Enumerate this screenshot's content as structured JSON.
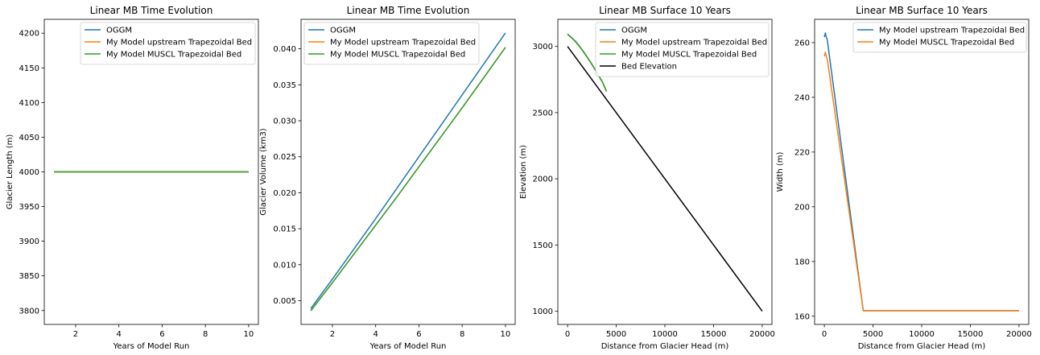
{
  "chart_data": [
    {
      "type": "line",
      "title": "Linear MB Time Evolution",
      "xlabel": "Years of Model Run",
      "ylabel": "Glacier Length (m)",
      "xlim": [
        0.55,
        10.45
      ],
      "ylim": [
        3780,
        4220
      ],
      "xticks": [
        2,
        4,
        6,
        8,
        10
      ],
      "yticks": [
        3800,
        3850,
        3900,
        3950,
        4000,
        4050,
        4100,
        4150,
        4200
      ],
      "legend": "top-right",
      "series": [
        {
          "name": "OGGM",
          "color": "#1f77b4",
          "x": [
            1,
            2,
            3,
            4,
            5,
            6,
            7,
            8,
            9,
            10
          ],
          "y": [
            4000,
            4000,
            4000,
            4000,
            4000,
            4000,
            4000,
            4000,
            4000,
            4000
          ]
        },
        {
          "name": "My Model upstream Trapezoidal Bed",
          "color": "#ff7f0e",
          "x": [
            1,
            2,
            3,
            4,
            5,
            6,
            7,
            8,
            9,
            10
          ],
          "y": [
            4000,
            4000,
            4000,
            4000,
            4000,
            4000,
            4000,
            4000,
            4000,
            4000
          ]
        },
        {
          "name": "My Model MUSCL Trapezoidal Bed",
          "color": "#2ca02c",
          "x": [
            1,
            2,
            3,
            4,
            5,
            6,
            7,
            8,
            9,
            10
          ],
          "y": [
            4000,
            4000,
            4000,
            4000,
            4000,
            4000,
            4000,
            4000,
            4000,
            4000
          ]
        }
      ]
    },
    {
      "type": "line",
      "title": "Linear MB Time Evolution",
      "xlabel": "Years of Model Run",
      "ylabel": "Glacier Volume (km3)",
      "xlim": [
        0.55,
        10.45
      ],
      "ylim": [
        0.0017,
        0.0441
      ],
      "xticks": [
        2,
        4,
        6,
        8,
        10
      ],
      "yticks": [
        0.005,
        0.01,
        0.015,
        0.02,
        0.025,
        0.03,
        0.035,
        0.04
      ],
      "ytick_labels": [
        "0.005",
        "0.010",
        "0.015",
        "0.020",
        "0.025",
        "0.030",
        "0.035",
        "0.040"
      ],
      "legend": "top-left",
      "series": [
        {
          "name": "OGGM",
          "color": "#1f77b4",
          "x": [
            1,
            2,
            3,
            4,
            5,
            6,
            7,
            8,
            9,
            10
          ],
          "y": [
            0.0039,
            0.008,
            0.0122,
            0.0164,
            0.0207,
            0.025,
            0.0293,
            0.0336,
            0.0379,
            0.0422
          ]
        },
        {
          "name": "My Model upstream Trapezoidal Bed",
          "color": "#ff7f0e",
          "x": [
            1,
            2,
            3,
            4,
            5,
            6,
            7,
            8,
            9,
            10
          ],
          "y": [
            0.0036,
            0.0075,
            0.0115,
            0.0155,
            0.0195,
            0.0236,
            0.0277,
            0.0318,
            0.036,
            0.0402
          ]
        },
        {
          "name": "My Model MUSCL Trapezoidal Bed",
          "color": "#2ca02c",
          "x": [
            1,
            2,
            3,
            4,
            5,
            6,
            7,
            8,
            9,
            10
          ],
          "y": [
            0.0036,
            0.0075,
            0.0115,
            0.0155,
            0.0195,
            0.0236,
            0.0277,
            0.0318,
            0.036,
            0.0402
          ]
        }
      ]
    },
    {
      "type": "line",
      "title": "Linear MB Surface 10 Years",
      "xlabel": "Distance from Glacier Head (m)",
      "ylabel": "Elevation (m)",
      "xlim": [
        -1000,
        21000
      ],
      "ylim": [
        900,
        3205
      ],
      "xticks": [
        0,
        5000,
        10000,
        15000,
        20000
      ],
      "yticks": [
        1000,
        1500,
        2000,
        2500,
        3000
      ],
      "legend": "top-right",
      "series": [
        {
          "name": "OGGM",
          "color": "#1f77b4",
          "x": [
            0,
            200,
            400,
            800,
            1200,
            1600,
            2000,
            2400,
            2800,
            3200,
            3600,
            4000
          ],
          "y": [
            3095,
            3080,
            3068,
            3040,
            3005,
            2965,
            2922,
            2878,
            2830,
            2780,
            2730,
            2660
          ]
        },
        {
          "name": "My Model upstream Trapezoidal Bed",
          "color": "#ff7f0e",
          "x": [
            0,
            200,
            400,
            800,
            1200,
            1600,
            2000,
            2400,
            2800,
            3200,
            3600,
            4000
          ],
          "y": [
            3093,
            3078,
            3066,
            3038,
            3003,
            2963,
            2920,
            2876,
            2828,
            2778,
            2728,
            2660
          ]
        },
        {
          "name": "My Model MUSCL Trapezoidal Bed",
          "color": "#2ca02c",
          "x": [
            0,
            200,
            400,
            800,
            1200,
            1600,
            2000,
            2400,
            2800,
            3200,
            3600,
            4000
          ],
          "y": [
            3093,
            3078,
            3066,
            3038,
            3003,
            2963,
            2920,
            2876,
            2828,
            2778,
            2728,
            2660
          ]
        },
        {
          "name": "Bed Elevation",
          "color": "#000000",
          "x": [
            0,
            20000
          ],
          "y": [
            3000,
            1000
          ]
        }
      ]
    },
    {
      "type": "line",
      "title": "Linear MB Surface 10 Years",
      "xlabel": "Distance from Glacier Head (m)",
      "ylabel": "Width (m)",
      "xlim": [
        -1000,
        21000
      ],
      "ylim": [
        157,
        268.5
      ],
      "xticks": [
        0,
        5000,
        10000,
        15000,
        20000
      ],
      "yticks": [
        160,
        180,
        200,
        220,
        240,
        260
      ],
      "legend": "top-right",
      "series": [
        {
          "name": "My Model upstream Trapezoidal Bed",
          "color": "#1f77b4",
          "x": [
            0,
            100,
            200,
            300,
            4000,
            4200,
            20000
          ],
          "y": [
            262,
            263.5,
            262,
            261,
            162,
            162,
            162
          ]
        },
        {
          "name": "My Model MUSCL Trapezoidal Bed",
          "color": "#ff7f0e",
          "x": [
            0,
            100,
            200,
            300,
            4000,
            4200,
            20000
          ],
          "y": [
            255,
            256.5,
            255,
            254,
            162,
            162,
            162
          ]
        }
      ]
    }
  ]
}
